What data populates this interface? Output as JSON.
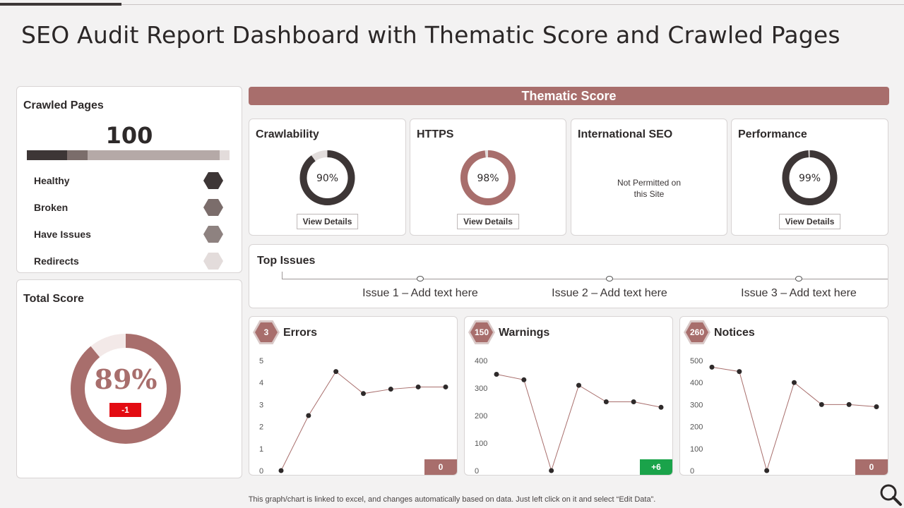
{
  "page": {
    "title": "SEO Audit Report Dashboard with Thematic Score and Crawled Pages",
    "footnote": "This graph/chart is linked to excel,  and changes automatically based on data. Just left click on it and select “Edit Data”."
  },
  "crawled_pages": {
    "title": "Crawled Pages",
    "count": "100",
    "segments": [
      {
        "label": "Healthy",
        "share": 0.2,
        "color": "#3d3636"
      },
      {
        "label": "Broken",
        "share": 0.1,
        "color": "#7b6d6b"
      },
      {
        "label": "Have Issues",
        "share": 0.65,
        "color": "#b5a9a7"
      },
      {
        "label": "Redirects",
        "share": 0.05,
        "color": "#e3dcdb"
      }
    ],
    "legend": [
      {
        "label": "Healthy",
        "color": "#3d3636"
      },
      {
        "label": "Broken",
        "color": "#7b6d6b"
      },
      {
        "label": "Have Issues",
        "color": "#8e8280"
      },
      {
        "label": "Redirects",
        "color": "#e3dcdb"
      }
    ]
  },
  "total_score": {
    "title": "Total Score",
    "value": "89%",
    "percent": 89,
    "change": "-1",
    "color": "#a86e6c",
    "track_color": "#f3e9e8",
    "change_color": "#e30b12"
  },
  "thematic": {
    "header": "Thematic Score",
    "cards": [
      {
        "title": "Crawlability",
        "label": "90%",
        "percent": 90,
        "color": "#3d3636",
        "button": "View Details"
      },
      {
        "title": "HTTPS",
        "label": "98%",
        "percent": 98,
        "color": "#a86e6c",
        "button": "View Details"
      },
      {
        "title": "International SEO",
        "note_line1": "Not Permitted on",
        "note_line2": "this Site"
      },
      {
        "title": "Performance",
        "label": "99%",
        "percent": 99,
        "color": "#3d3636",
        "button": "View Details"
      }
    ]
  },
  "top_issues": {
    "title": "Top Issues",
    "items": [
      "Issue  1 – Add text  here",
      "Issue  2 – Add text  here",
      "Issue  3 – Add text  here"
    ]
  },
  "chart_data": [
    {
      "type": "line",
      "title": "Errors",
      "badge": "3",
      "delta": "0",
      "delta_color": "#a86e6c",
      "x": [
        1,
        2,
        3,
        4,
        5,
        6,
        7
      ],
      "values": [
        0,
        2.5,
        4.5,
        3.5,
        3.7,
        3.8,
        3.8
      ],
      "ylim": [
        0,
        5
      ],
      "yticks": [
        "0",
        "1",
        "2",
        "3",
        "4",
        "5"
      ]
    },
    {
      "type": "line",
      "title": "Warnings",
      "badge": "150",
      "delta": "+6",
      "delta_color": "#1aa34a",
      "x": [
        1,
        2,
        3,
        4,
        5,
        6,
        7
      ],
      "values": [
        350,
        330,
        0,
        310,
        250,
        250,
        230
      ],
      "ylim": [
        0,
        400
      ],
      "yticks": [
        "0",
        "100",
        "200",
        "300",
        "400"
      ]
    },
    {
      "type": "line",
      "title": "Notices",
      "badge": "260",
      "delta": "0",
      "delta_color": "#a86e6c",
      "x": [
        1,
        2,
        3,
        4,
        5,
        6,
        7
      ],
      "values": [
        470,
        450,
        0,
        400,
        300,
        300,
        290
      ],
      "ylim": [
        0,
        500
      ],
      "yticks": [
        "0",
        "100",
        "200",
        "300",
        "400",
        "500"
      ]
    }
  ]
}
